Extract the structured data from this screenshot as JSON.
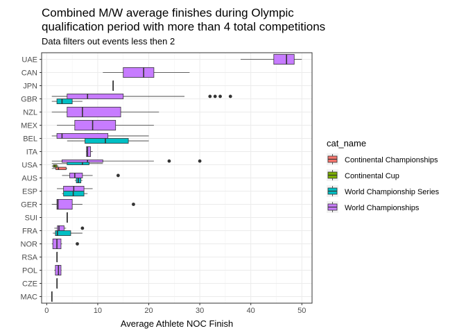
{
  "chart_data": {
    "type": "boxplot",
    "title": [
      "Combined M/W average finishes during Olympic",
      "qualification period with more than 4 total competitions"
    ],
    "subtitle": "Data filters out events less then 2",
    "xlabel": "Average Athlete NOC Finish",
    "ylabel": "",
    "xlim": [
      -1,
      52
    ],
    "xticks": [
      0,
      10,
      20,
      30,
      40,
      50
    ],
    "categories": [
      "UAE",
      "CAN",
      "JPN",
      "GBR",
      "NZL",
      "MEX",
      "BEL",
      "ITA",
      "USA",
      "AUS",
      "ESP",
      "GER",
      "SUI",
      "FRA",
      "NOR",
      "RSA",
      "POL",
      "CZE",
      "MAC"
    ],
    "legend": {
      "title": "cat_name",
      "entries": [
        {
          "name": "Continental Championships",
          "color": "#F8766D"
        },
        {
          "name": "Continental Cup",
          "color": "#7CAE00"
        },
        {
          "name": "World Championship Series",
          "color": "#00BFC4"
        },
        {
          "name": "World Championships",
          "color": "#C77CFF"
        }
      ]
    },
    "series": [
      {
        "name": "World Championships",
        "color": "#C77CFF",
        "boxes": [
          {
            "cat": "UAE",
            "min": 38,
            "q1": 44.5,
            "median": 47,
            "q3": 48.5,
            "max": 50,
            "outliers": []
          },
          {
            "cat": "CAN",
            "min": 11,
            "q1": 15,
            "median": 19,
            "q3": 21,
            "max": 28,
            "outliers": []
          },
          {
            "cat": "JPN",
            "min": 13,
            "q1": 13,
            "median": 13,
            "q3": 13,
            "max": 13,
            "outliers": []
          },
          {
            "cat": "GBR",
            "min": 1,
            "q1": 4,
            "median": 8,
            "q3": 15,
            "max": 27,
            "outliers": [
              32,
              33,
              34,
              36
            ]
          },
          {
            "cat": "NZL",
            "min": 1,
            "q1": 4,
            "median": 7,
            "q3": 14.5,
            "max": 22,
            "outliers": []
          },
          {
            "cat": "MEX",
            "min": 2,
            "q1": 5.5,
            "median": 9,
            "q3": 13.5,
            "max": 21,
            "outliers": []
          },
          {
            "cat": "BEL",
            "min": 1,
            "q1": 2,
            "median": 3,
            "q3": 12,
            "max": 20,
            "outliers": []
          },
          {
            "cat": "ITA",
            "min": 7.7,
            "q1": 7.8,
            "median": 8,
            "q3": 8.6,
            "max": 9,
            "outliers": []
          },
          {
            "cat": "USA",
            "min": 1,
            "q1": 3,
            "median": 8,
            "q3": 11,
            "max": 21,
            "outliers": [
              24,
              30
            ]
          },
          {
            "cat": "AUS",
            "min": 3,
            "q1": 4.5,
            "median": 5.5,
            "q3": 7,
            "max": 9,
            "outliers": [
              14
            ]
          },
          {
            "cat": "ESP",
            "min": 2,
            "q1": 3.3,
            "median": 5.3,
            "q3": 7.3,
            "max": 9,
            "outliers": []
          },
          {
            "cat": "GER",
            "min": 1,
            "q1": 2,
            "median": 2.2,
            "q3": 5,
            "max": 7,
            "outliers": [
              17
            ]
          },
          {
            "cat": "SUI",
            "min": 4,
            "q1": 4,
            "median": 4,
            "q3": 4,
            "max": 4,
            "outliers": []
          },
          {
            "cat": "FRA",
            "min": 1.5,
            "q1": 2.1,
            "median": 2.4,
            "q3": 3.4,
            "max": 3.8,
            "outliers": [
              7
            ]
          },
          {
            "cat": "NOR",
            "min": 1,
            "q1": 1.2,
            "median": 2,
            "q3": 2.8,
            "max": 3,
            "outliers": [
              6
            ]
          },
          {
            "cat": "RSA",
            "min": 2,
            "q1": 2,
            "median": 2,
            "q3": 2,
            "max": 2,
            "outliers": []
          },
          {
            "cat": "POL",
            "min": 1.5,
            "q1": 1.7,
            "median": 2.3,
            "q3": 2.8,
            "max": 2.9,
            "outliers": []
          },
          {
            "cat": "CZE",
            "min": 2,
            "q1": 2,
            "median": 2,
            "q3": 2,
            "max": 2,
            "outliers": []
          },
          {
            "cat": "MAC",
            "min": 1,
            "q1": 1,
            "median": 1,
            "q3": 1,
            "max": 1,
            "outliers": []
          }
        ]
      },
      {
        "name": "World Championship Series",
        "color": "#00BFC4",
        "boxes": [
          {
            "cat": "GBR",
            "min": 1,
            "q1": 2,
            "median": 3,
            "q3": 5,
            "max": 7,
            "outliers": []
          },
          {
            "cat": "BEL",
            "min": 4,
            "q1": 7.5,
            "median": 11.5,
            "q3": 16,
            "max": 20,
            "outliers": []
          },
          {
            "cat": "USA",
            "min": 1,
            "q1": 4,
            "median": 7,
            "q3": 8.3,
            "max": 11,
            "outliers": []
          },
          {
            "cat": "AUS",
            "min": 5.5,
            "q1": 5.8,
            "median": 6.2,
            "q3": 6.7,
            "max": 7,
            "outliers": []
          },
          {
            "cat": "ESP",
            "min": 3,
            "q1": 3.3,
            "median": 5.2,
            "q3": 7.3,
            "max": 8,
            "outliers": []
          },
          {
            "cat": "FRA",
            "min": 1.2,
            "q1": 1.7,
            "median": 2.1,
            "q3": 4.7,
            "max": 7,
            "outliers": []
          }
        ]
      },
      {
        "name": "Continental Cup",
        "color": "#7CAE00",
        "boxes": [
          {
            "cat": "USA",
            "min": 1,
            "q1": 1.3,
            "median": 1.6,
            "q3": 2,
            "max": 2.3,
            "outliers": []
          }
        ]
      },
      {
        "name": "Continental Championships",
        "color": "#F8766D",
        "boxes": [
          {
            "cat": "USA",
            "min": 1,
            "q1": 1.8,
            "median": 2.3,
            "q3": 3.8,
            "max": 4,
            "outliers": []
          }
        ]
      }
    ],
    "grid": true,
    "legend_position": "right"
  }
}
